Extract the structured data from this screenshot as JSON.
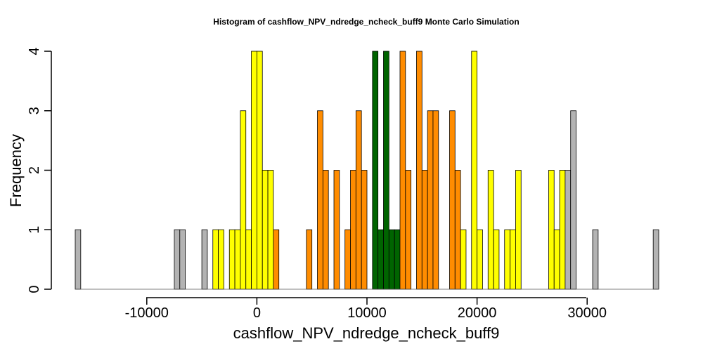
{
  "chart_data": {
    "type": "bar",
    "title": "Histogram of  cashflow_NPV_ndredge_ncheck_buff9  Monte Carlo Simulation",
    "xlabel": "cashflow_NPV_ndredge_ncheck_buff9",
    "ylabel": "Frequency",
    "xlim": [
      -16500,
      36500
    ],
    "ylim": [
      0,
      4
    ],
    "xticks": [
      -10000,
      0,
      10000,
      20000,
      30000
    ],
    "xtick_labels": [
      "-10000",
      "0",
      "10000",
      "20000",
      "30000"
    ],
    "yticks": [
      0,
      1,
      2,
      3,
      4
    ],
    "ytick_labels": [
      "0",
      "1",
      "2",
      "3",
      "4"
    ],
    "bin_width": 500,
    "bin_start": -16500,
    "colors": {
      "gray": "#b3b3b3",
      "yellow": "#ffff00",
      "orange": "#ff8c00",
      "green": "#006400"
    },
    "bins": [
      {
        "x0": -16500,
        "count": 1,
        "color": "gray"
      },
      {
        "x0": -7500,
        "count": 1,
        "color": "gray"
      },
      {
        "x0": -7000,
        "count": 1,
        "color": "gray"
      },
      {
        "x0": -5000,
        "count": 1,
        "color": "gray"
      },
      {
        "x0": -4000,
        "count": 1,
        "color": "yellow"
      },
      {
        "x0": -3500,
        "count": 1,
        "color": "yellow"
      },
      {
        "x0": -2500,
        "count": 1,
        "color": "yellow"
      },
      {
        "x0": -2000,
        "count": 1,
        "color": "yellow"
      },
      {
        "x0": -1500,
        "count": 3,
        "color": "yellow"
      },
      {
        "x0": -1000,
        "count": 1,
        "color": "yellow"
      },
      {
        "x0": -500,
        "count": 4,
        "color": "yellow"
      },
      {
        "x0": 0,
        "count": 4,
        "color": "yellow"
      },
      {
        "x0": 500,
        "count": 2,
        "color": "yellow"
      },
      {
        "x0": 1000,
        "count": 2,
        "color": "yellow"
      },
      {
        "x0": 1500,
        "count": 1,
        "color": "orange"
      },
      {
        "x0": 4500,
        "count": 1,
        "color": "orange"
      },
      {
        "x0": 5500,
        "count": 3,
        "color": "orange"
      },
      {
        "x0": 6000,
        "count": 2,
        "color": "orange"
      },
      {
        "x0": 7000,
        "count": 2,
        "color": "orange"
      },
      {
        "x0": 8000,
        "count": 1,
        "color": "orange"
      },
      {
        "x0": 8500,
        "count": 2,
        "color": "orange"
      },
      {
        "x0": 9000,
        "count": 3,
        "color": "orange"
      },
      {
        "x0": 9500,
        "count": 2,
        "color": "orange"
      },
      {
        "x0": 10500,
        "count": 4,
        "color": "green"
      },
      {
        "x0": 11000,
        "count": 1,
        "color": "green"
      },
      {
        "x0": 11500,
        "count": 4,
        "color": "green"
      },
      {
        "x0": 12000,
        "count": 1,
        "color": "green"
      },
      {
        "x0": 12500,
        "count": 1,
        "color": "green"
      },
      {
        "x0": 13000,
        "count": 4,
        "color": "orange"
      },
      {
        "x0": 13500,
        "count": 2,
        "color": "orange"
      },
      {
        "x0": 14500,
        "count": 4,
        "color": "orange"
      },
      {
        "x0": 15000,
        "count": 2,
        "color": "orange"
      },
      {
        "x0": 15500,
        "count": 3,
        "color": "orange"
      },
      {
        "x0": 16000,
        "count": 3,
        "color": "orange"
      },
      {
        "x0": 17500,
        "count": 3,
        "color": "orange"
      },
      {
        "x0": 18000,
        "count": 2,
        "color": "orange"
      },
      {
        "x0": 18500,
        "count": 1,
        "color": "yellow"
      },
      {
        "x0": 19500,
        "count": 4,
        "color": "yellow"
      },
      {
        "x0": 20000,
        "count": 1,
        "color": "yellow"
      },
      {
        "x0": 21000,
        "count": 2,
        "color": "yellow"
      },
      {
        "x0": 21500,
        "count": 1,
        "color": "yellow"
      },
      {
        "x0": 22500,
        "count": 1,
        "color": "yellow"
      },
      {
        "x0": 23000,
        "count": 1,
        "color": "yellow"
      },
      {
        "x0": 23500,
        "count": 2,
        "color": "yellow"
      },
      {
        "x0": 26500,
        "count": 2,
        "color": "yellow"
      },
      {
        "x0": 27000,
        "count": 1,
        "color": "yellow"
      },
      {
        "x0": 27500,
        "count": 2,
        "color": "yellow"
      },
      {
        "x0": 28000,
        "count": 2,
        "color": "gray"
      },
      {
        "x0": 28500,
        "count": 3,
        "color": "gray"
      },
      {
        "x0": 30500,
        "count": 1,
        "color": "gray"
      },
      {
        "x0": 36000,
        "count": 1,
        "color": "gray"
      }
    ]
  }
}
